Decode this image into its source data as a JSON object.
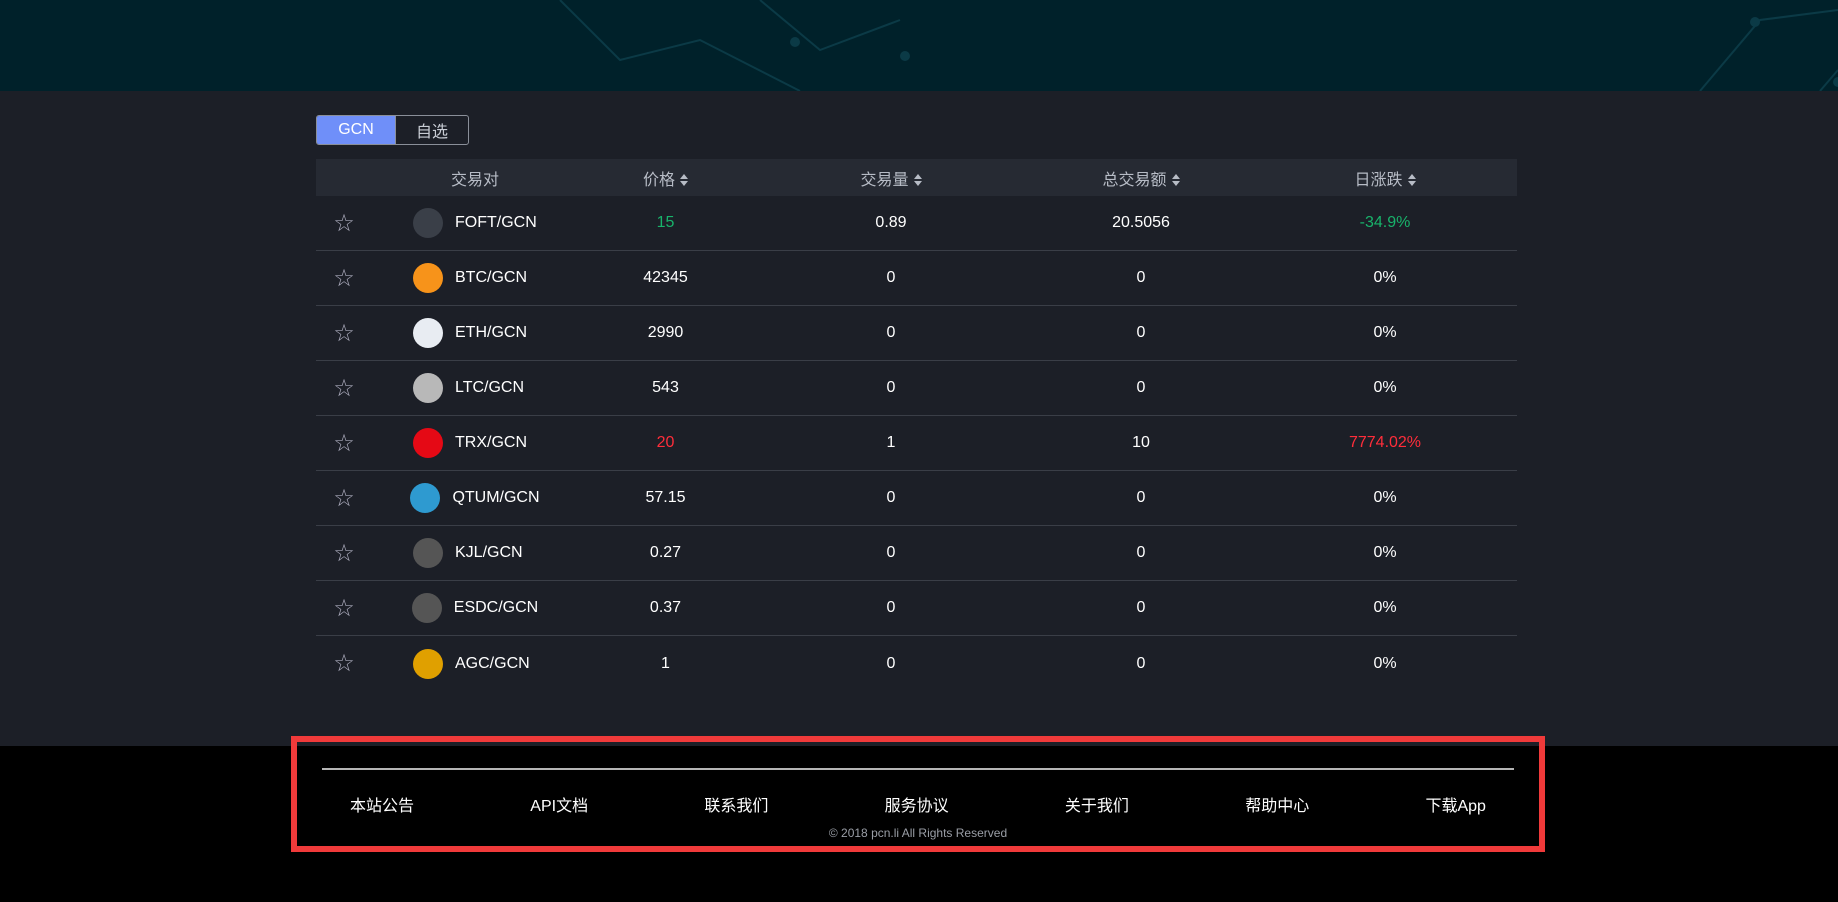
{
  "tabs": [
    {
      "label": "GCN",
      "active": true
    },
    {
      "label": "自选",
      "active": false
    }
  ],
  "table": {
    "headers": [
      "交易对",
      "价格",
      "交易量",
      "总交易额",
      "日涨跌"
    ],
    "rows": [
      {
        "pair": "FOFT/GCN",
        "icon": "foft-coin-icon",
        "icon_color": "#3a3f48",
        "price": "15",
        "volume": "0.89",
        "total": "20.5056",
        "change": "-34.9%",
        "trend": "down"
      },
      {
        "pair": "BTC/GCN",
        "icon": "btc-coin-icon",
        "icon_color": "#f7931a",
        "price": "42345",
        "volume": "0",
        "total": "0",
        "change": "0%",
        "trend": ""
      },
      {
        "pair": "ETH/GCN",
        "icon": "eth-coin-icon",
        "icon_color": "#e8ecf2",
        "price": "2990",
        "volume": "0",
        "total": "0",
        "change": "0%",
        "trend": ""
      },
      {
        "pair": "LTC/GCN",
        "icon": "ltc-coin-icon",
        "icon_color": "#b8b8b8",
        "price": "543",
        "volume": "0",
        "total": "0",
        "change": "0%",
        "trend": ""
      },
      {
        "pair": "TRX/GCN",
        "icon": "trx-coin-icon",
        "icon_color": "#e50915",
        "price": "20",
        "volume": "1",
        "total": "10",
        "change": "7774.02%",
        "trend": "up"
      },
      {
        "pair": "QTUM/GCN",
        "icon": "qtum-coin-icon",
        "icon_color": "#2e9ad0",
        "price": "57.15",
        "volume": "0",
        "total": "0",
        "change": "0%",
        "trend": ""
      },
      {
        "pair": "KJL/GCN",
        "icon": "kjl-coin-icon",
        "icon_color": "#555",
        "price": "0.27",
        "volume": "0",
        "total": "0",
        "change": "0%",
        "trend": ""
      },
      {
        "pair": "ESDC/GCN",
        "icon": "esdc-coin-icon",
        "icon_color": "#555",
        "price": "0.37",
        "volume": "0",
        "total": "0",
        "change": "0%",
        "trend": ""
      },
      {
        "pair": "AGC/GCN",
        "icon": "agc-coin-icon",
        "icon_color": "#e0a000",
        "price": "1",
        "volume": "0",
        "total": "0",
        "change": "0%",
        "trend": ""
      }
    ]
  },
  "footer": {
    "links": [
      "本站公告",
      "API文档",
      "联系我们",
      "服务协议",
      "关于我们",
      "帮助中心",
      "下载App"
    ],
    "copyright": "© 2018 pcn.li All Rights Reserved"
  }
}
